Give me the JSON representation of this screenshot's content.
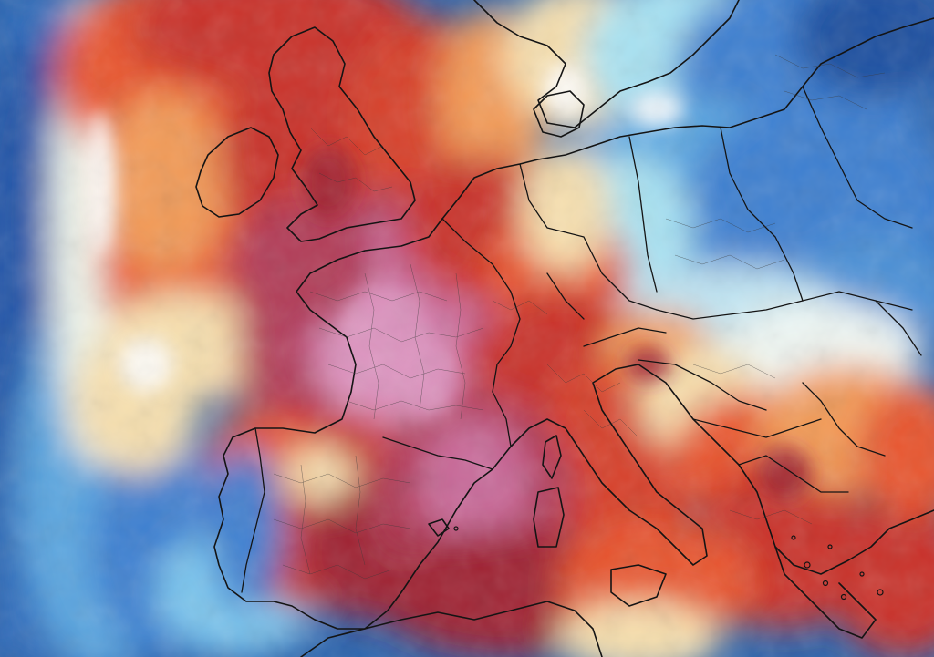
{
  "map": {
    "type": "temperature-anomaly-heatmap",
    "region": "Europe",
    "legend": "none",
    "colors": {
      "deep_blue": "#1f4fa0",
      "blue": "#3d7fd0",
      "light_blue": "#7cc6ee",
      "cyan": "#a8e2f2",
      "pale": "#eef6f3",
      "cream": "#f6dfae",
      "orange": "#f29a57",
      "red_orange": "#e8552e",
      "red": "#c9302a",
      "dark_red": "#9f2433",
      "crimson": "#b13a56",
      "pink": "#c96a9a",
      "light_pink": "#dd94c0",
      "border": "#141414",
      "subborder": "#3a3a3a"
    }
  }
}
